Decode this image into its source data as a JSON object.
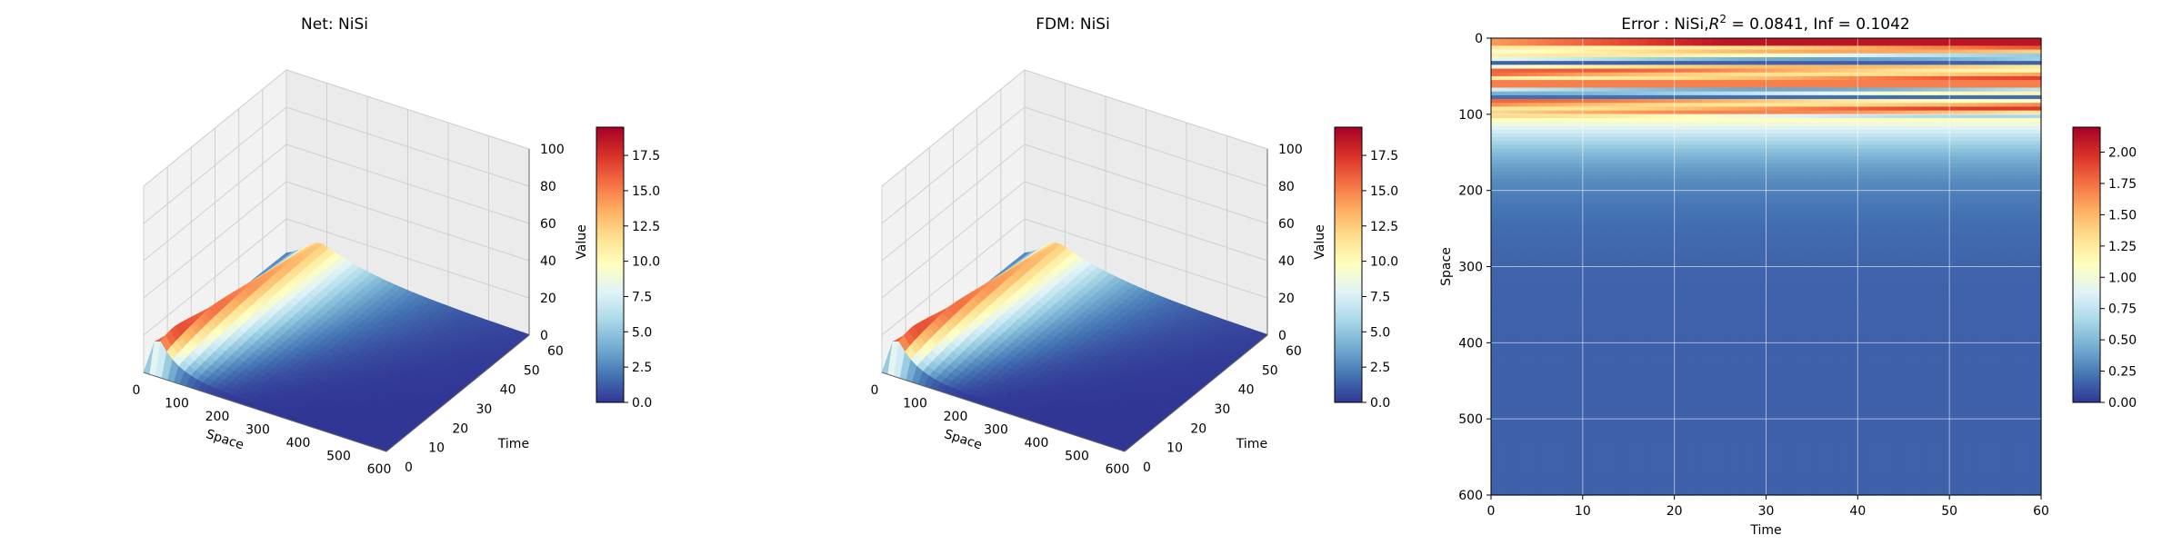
{
  "chart_data": [
    {
      "type": "surface",
      "title": "Net: NiSi",
      "xlabel": "Space",
      "ylabel": "Time",
      "zlabel": "Value",
      "x_ticks": [
        0,
        100,
        200,
        300,
        400,
        500,
        600
      ],
      "y_ticks": [
        0,
        10,
        20,
        30,
        40,
        50,
        60
      ],
      "z_ticks": [
        0,
        20,
        40,
        60,
        80,
        100
      ],
      "xlim": [
        0,
        600
      ],
      "ylim": [
        0,
        60
      ],
      "zlim": [
        0,
        100
      ],
      "peak_value": 19.5,
      "colormap": "RdYlBu_r",
      "colorbar": {
        "label": "",
        "range": [
          0,
          19.5
        ],
        "ticks": [
          "0.0",
          "2.5",
          "5.0",
          "7.5",
          "10.0",
          "12.5",
          "15.0",
          "17.5"
        ]
      },
      "grid": true
    },
    {
      "type": "surface",
      "title": "FDM: NiSi",
      "xlabel": "Space",
      "ylabel": "Time",
      "zlabel": "Value",
      "x_ticks": [
        0,
        100,
        200,
        300,
        400,
        500,
        600
      ],
      "y_ticks": [
        0,
        10,
        20,
        30,
        40,
        50,
        60
      ],
      "z_ticks": [
        0,
        20,
        40,
        60,
        80,
        100
      ],
      "xlim": [
        0,
        600
      ],
      "ylim": [
        0,
        60
      ],
      "zlim": [
        0,
        100
      ],
      "peak_value": 19.5,
      "colormap": "RdYlBu_r",
      "colorbar": {
        "label": "",
        "range": [
          0,
          19.5
        ],
        "ticks": [
          "0.0",
          "2.5",
          "5.0",
          "7.5",
          "10.0",
          "12.5",
          "15.0",
          "17.5"
        ]
      },
      "grid": true
    },
    {
      "type": "heatmap",
      "title": "Error : NiSi,R² = 0.0841, Inf = 0.1042",
      "title_parts": {
        "pre": "Error : NiSi,",
        "r": "R",
        "sup": "2",
        "post": " = 0.0841, Inf = 0.1042"
      },
      "xlabel": "Time",
      "ylabel": "Space",
      "x_ticks": [
        0,
        10,
        20,
        30,
        40,
        50,
        60
      ],
      "y_ticks": [
        0,
        100,
        200,
        300,
        400,
        500,
        600
      ],
      "xlim": [
        0,
        60
      ],
      "ylim": [
        600,
        0
      ],
      "colormap": "RdYlBu_r",
      "colorbar": {
        "label": "",
        "range": [
          0,
          2.2
        ],
        "ticks": [
          "0.00",
          "0.25",
          "0.50",
          "0.75",
          "1.00",
          "1.25",
          "1.50",
          "1.75",
          "2.00"
        ]
      },
      "grid": true
    }
  ]
}
